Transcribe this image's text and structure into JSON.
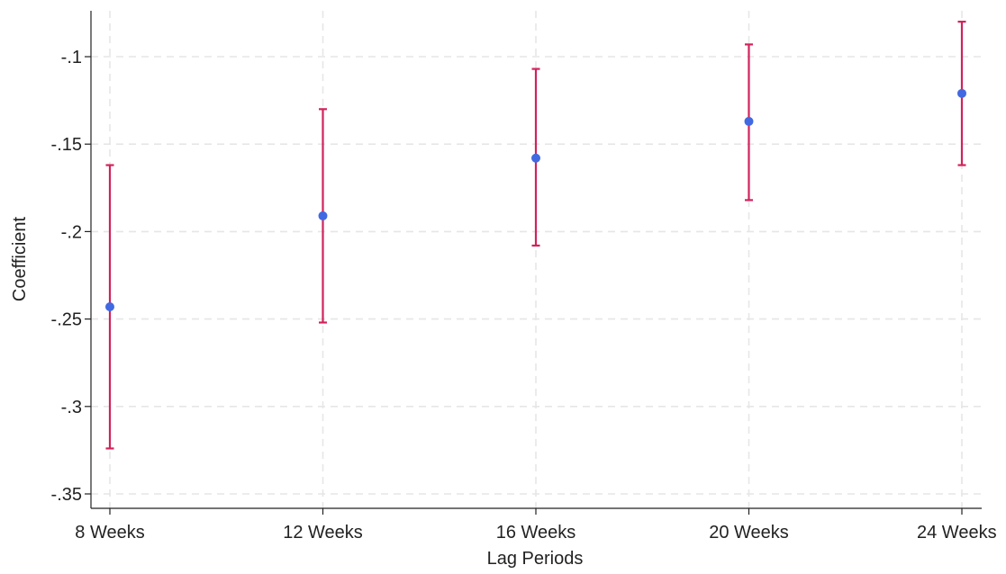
{
  "chart_data": {
    "type": "scatter",
    "xlabel": "Lag Periods",
    "ylabel": "Coefficient",
    "categories": [
      "8 Weeks",
      "12 Weeks",
      "16 Weeks",
      "20 Weeks",
      "24 Weeks"
    ],
    "ylim": [
      -0.35,
      -0.1
    ],
    "yticks": [
      -0.1,
      -0.15,
      -0.2,
      -0.25,
      -0.3,
      -0.35
    ],
    "ytick_labels": [
      "-.1",
      "-.15",
      "-.2",
      "-.25",
      "-.3",
      "-.35"
    ],
    "grid": true,
    "series": [
      {
        "values": [
          -0.243,
          -0.191,
          -0.158,
          -0.137,
          -0.121
        ],
        "ci_low": [
          -0.324,
          -0.252,
          -0.208,
          -0.182,
          -0.162
        ],
        "ci_high": [
          -0.162,
          -0.13,
          -0.107,
          -0.093,
          -0.08
        ]
      }
    ],
    "colors": {
      "point": "#4169e1",
      "errorbar": "#d1235b",
      "grid": "#e6e6e6",
      "axis": "#222222"
    }
  }
}
